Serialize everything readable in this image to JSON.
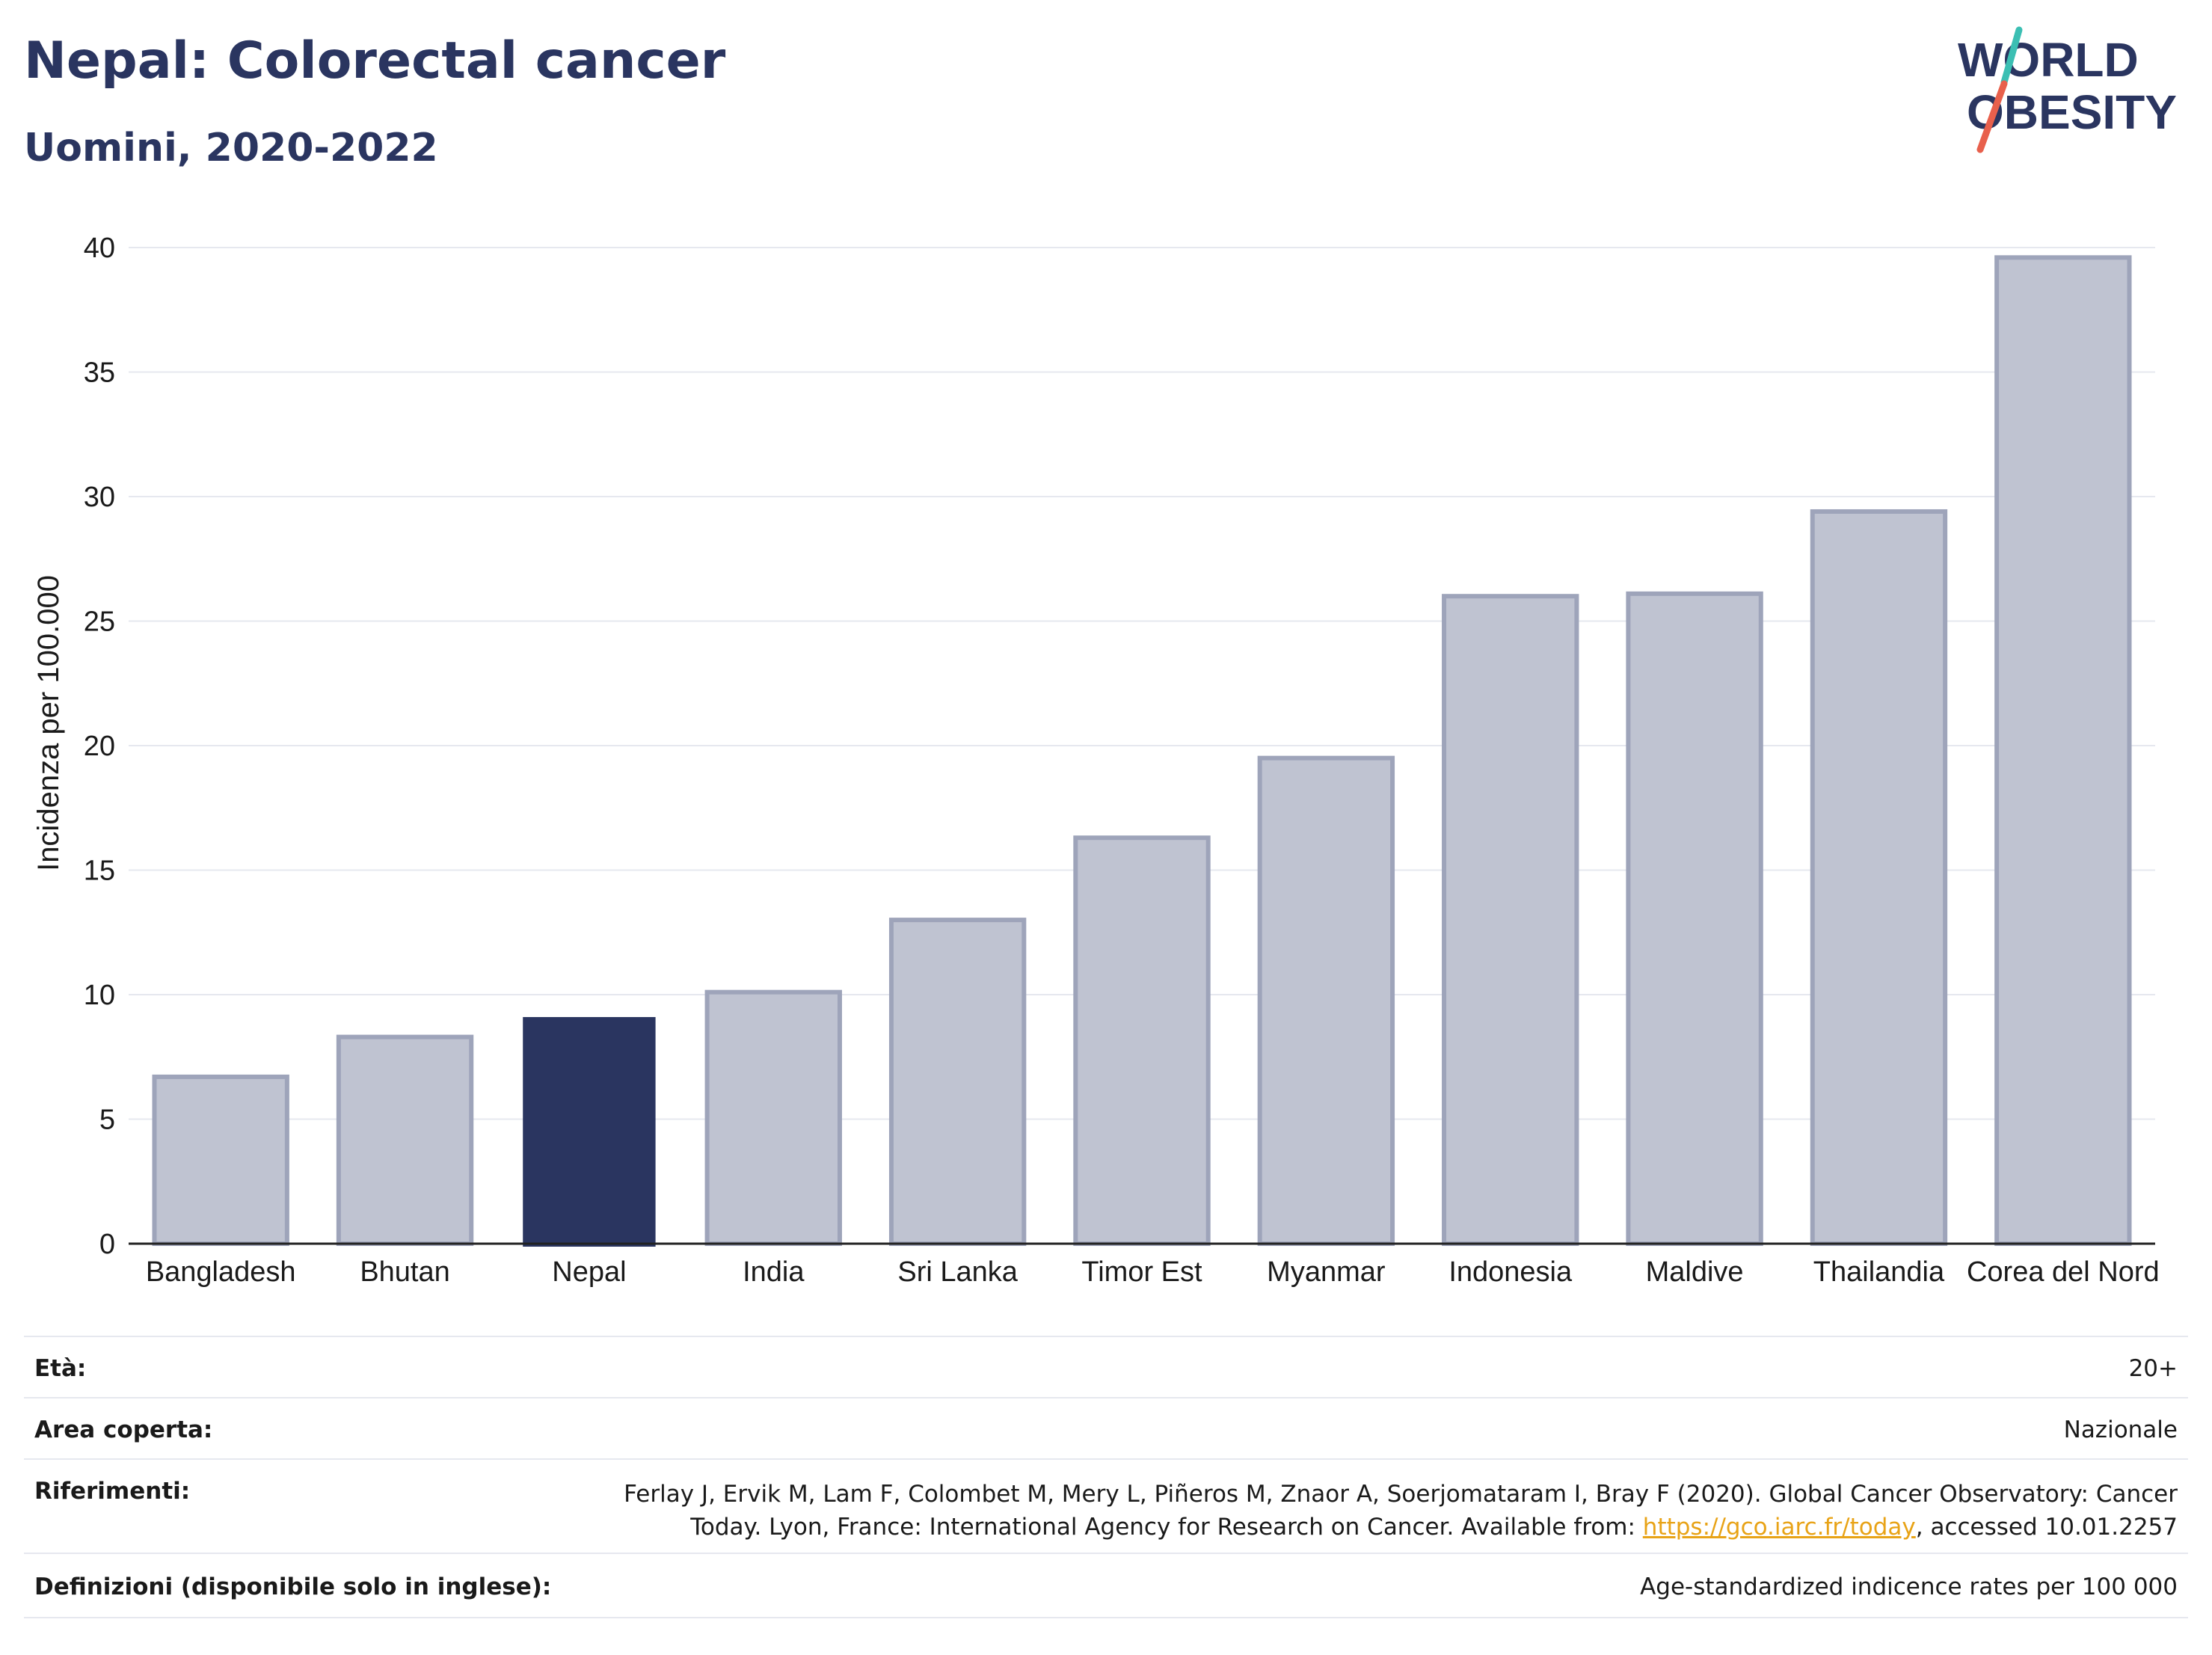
{
  "header": {
    "title": "Nepal: Colorectal cancer",
    "subtitle": "Uomini, 2020-2022"
  },
  "logo": {
    "line1": "WORLD",
    "line2": "OBESITY",
    "accent_colors": [
      "#3bbfb3",
      "#e8604c"
    ]
  },
  "chart_data": {
    "type": "bar",
    "categories": [
      "Bangladesh",
      "Bhutan",
      "Nepal",
      "India",
      "Sri Lanka",
      "Timor Est",
      "Myanmar",
      "Indonesia",
      "Maldive",
      "Thailandia",
      "Corea del Nord"
    ],
    "values": [
      6.7,
      8.3,
      9.1,
      10.1,
      13.0,
      16.3,
      19.5,
      26.0,
      26.1,
      29.4,
      39.6
    ],
    "highlight": "Nepal",
    "ylabel": "Incidenza per 100.000",
    "xlabel": "",
    "ylim": [
      0,
      40
    ],
    "yticks": [
      0,
      5,
      10,
      15,
      20,
      25,
      30,
      35,
      40
    ],
    "grid": true,
    "colors": {
      "highlight": "#2a3560",
      "other": "#bfc3d1",
      "other_stroke": "#9ea4ba"
    }
  },
  "meta": {
    "age_label": "Età:",
    "age_value": "20+",
    "area_label": "Area coperta:",
    "area_value": "Nazionale",
    "refs_label": "Riferimenti:",
    "refs_line1": "Ferlay J, Ervik M, Lam F, Colombet M, Mery L, Piñeros M, Znaor A, Soerjomataram I, Bray F (2020). Global Cancer Observatory: Cancer",
    "refs_line2_pre": "Today. Lyon, France: International Agency for Research on Cancer. Available from: ",
    "refs_link": "https://gco.iarc.fr/today",
    "refs_line2_post": ", accessed 10.01.2257",
    "defs_label": "Definizioni (disponibile solo in inglese):",
    "defs_value": "Age-standardized indicence rates per 100 000"
  }
}
